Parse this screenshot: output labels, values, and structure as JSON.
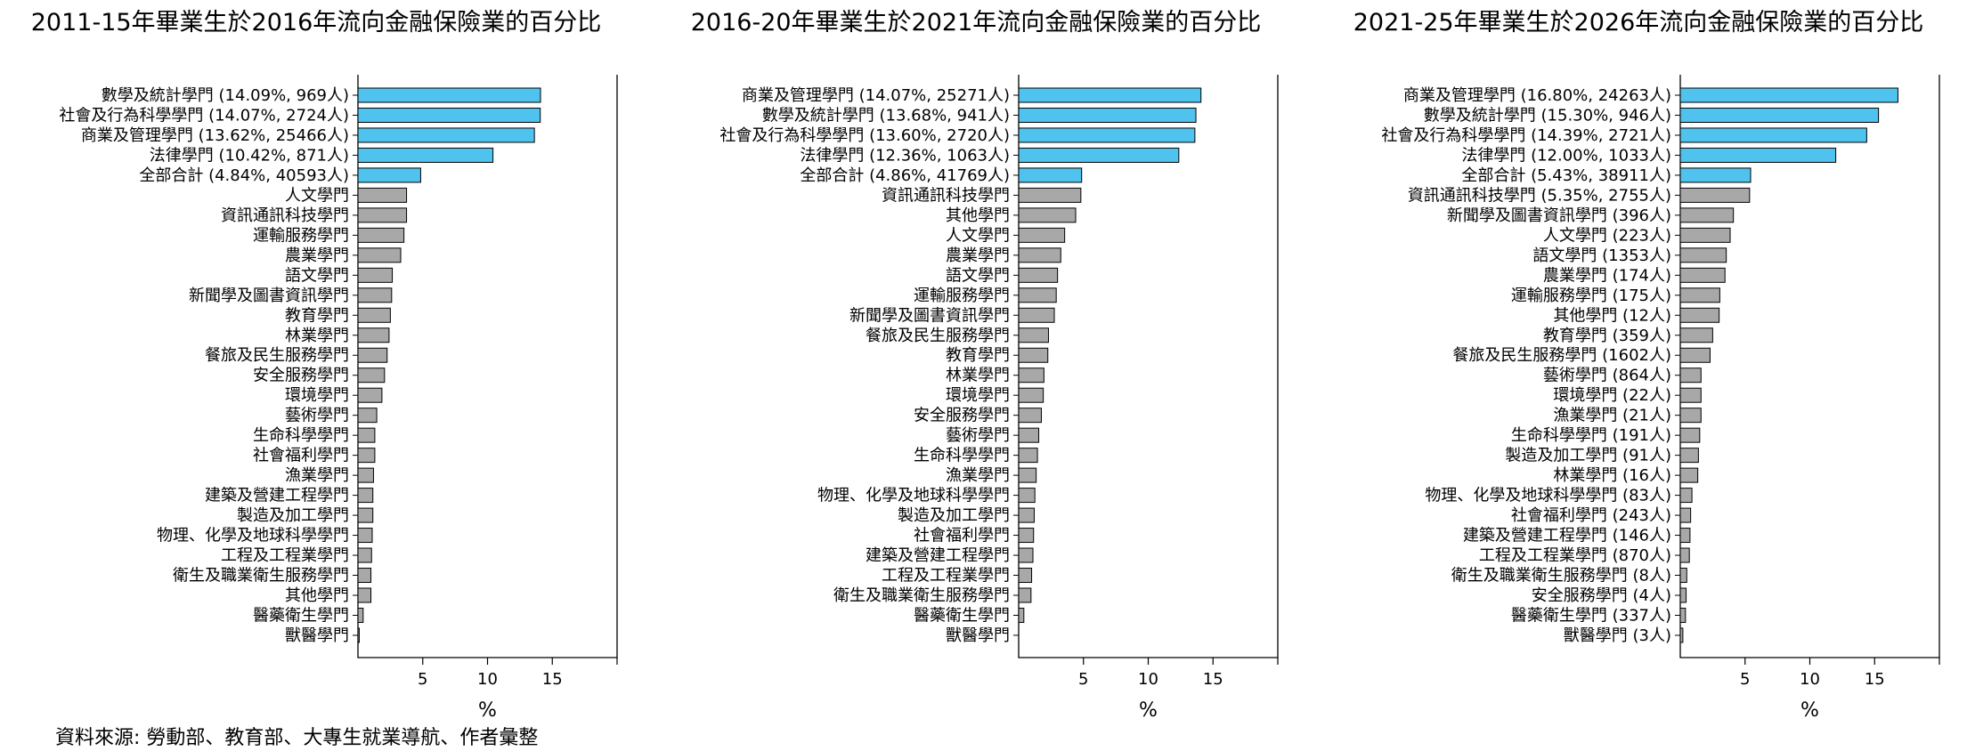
{
  "source": "資料來源: 勞動部、教育部、大專生就業導航、作者彙整",
  "colors": {
    "highlight": "#4FC3EE",
    "normal": "#A8A8A8",
    "edge": "#000000"
  },
  "chart_data": [
    {
      "type": "bar",
      "orientation": "horizontal",
      "title": "2011-15年畢業生於2016年流向金融保險業的百分比",
      "xlabel": "%",
      "xlim": [
        0,
        20
      ],
      "xticks": [
        5,
        10,
        15
      ],
      "categories": [
        "數學及統計學門 (14.09%, 969人)",
        "社會及行為科學學門 (14.07%, 2724人)",
        "商業及管理學門 (13.62%, 25466人)",
        "法律學門 (10.42%, 871人)",
        "全部合計 (4.84%, 40593人)",
        "人文學門",
        "資訊通訊科技學門",
        "運輸服務學門",
        "農業學門",
        "語文學門",
        "新聞學及圖書資訊學門",
        "教育學門",
        "林業學門",
        "餐旅及民生服務學門",
        "安全服務學門",
        "環境學門",
        "藝術學門",
        "生命科學學門",
        "社會福利學門",
        "漁業學門",
        "建築及營建工程學門",
        "製造及加工學門",
        "物理、化學及地球科學學門",
        "工程及工程業學門",
        "衛生及職業衛生服務學門",
        "其他學門",
        "醫藥衛生學門",
        "獸醫學門"
      ],
      "values": [
        14.09,
        14.07,
        13.62,
        10.42,
        4.84,
        3.75,
        3.75,
        3.55,
        3.3,
        2.65,
        2.6,
        2.5,
        2.4,
        2.25,
        2.05,
        1.85,
        1.45,
        1.3,
        1.3,
        1.2,
        1.15,
        1.15,
        1.1,
        1.05,
        1.0,
        1.0,
        0.4,
        0.1
      ],
      "highlighted": [
        true,
        true,
        true,
        true,
        true,
        false,
        false,
        false,
        false,
        false,
        false,
        false,
        false,
        false,
        false,
        false,
        false,
        false,
        false,
        false,
        false,
        false,
        false,
        false,
        false,
        false,
        false,
        false
      ]
    },
    {
      "type": "bar",
      "orientation": "horizontal",
      "title": "2016-20年畢業生於2021年流向金融保險業的百分比",
      "xlabel": "%",
      "xlim": [
        0,
        20
      ],
      "xticks": [
        5,
        10,
        15
      ],
      "categories": [
        "商業及管理學門 (14.07%, 25271人)",
        "數學及統計學門 (13.68%, 941人)",
        "社會及行為科學學門 (13.60%, 2720人)",
        "法律學門 (12.36%, 1063人)",
        "全部合計 (4.86%, 41769人)",
        "資訊通訊科技學門",
        "其他學門",
        "人文學門",
        "農業學門",
        "語文學門",
        "運輸服務學門",
        "新聞學及圖書資訊學門",
        "餐旅及民生服務學門",
        "教育學門",
        "林業學門",
        "環境學門",
        "安全服務學門",
        "藝術學門",
        "生命科學學門",
        "漁業學門",
        "物理、化學及地球科學學門",
        "製造及加工學門",
        "社會福利學門",
        "建築及營建工程學門",
        "工程及工程業學門",
        "衛生及職業衛生服務學門",
        "醫藥衛生學門",
        "獸醫學門"
      ],
      "values": [
        14.07,
        13.68,
        13.6,
        12.36,
        4.86,
        4.8,
        4.4,
        3.55,
        3.25,
        3.0,
        2.9,
        2.75,
        2.3,
        2.25,
        1.95,
        1.9,
        1.75,
        1.55,
        1.45,
        1.35,
        1.25,
        1.2,
        1.15,
        1.1,
        1.0,
        0.95,
        0.4,
        0.0
      ],
      "highlighted": [
        true,
        true,
        true,
        true,
        true,
        false,
        false,
        false,
        false,
        false,
        false,
        false,
        false,
        false,
        false,
        false,
        false,
        false,
        false,
        false,
        false,
        false,
        false,
        false,
        false,
        false,
        false,
        false
      ]
    },
    {
      "type": "bar",
      "orientation": "horizontal",
      "title": "2021-25年畢業生於2026年流向金融保險業的百分比",
      "xlabel": "%",
      "xlim": [
        0,
        20
      ],
      "xticks": [
        5,
        10,
        15
      ],
      "categories": [
        "商業及管理學門 (16.80%, 24263人)",
        "數學及統計學門 (15.30%, 946人)",
        "社會及行為科學學門 (14.39%, 2721人)",
        "法律學門 (12.00%, 1033人)",
        "全部合計 (5.43%, 38911人)",
        "資訊通訊科技學門 (5.35%, 2755人)",
        "新聞學及圖書資訊學門 (396人)",
        "人文學門 (223人)",
        "語文學門 (1353人)",
        "農業學門 (174人)",
        "運輸服務學門 (175人)",
        "其他學門 (12人)",
        "教育學門 (359人)",
        "餐旅及民生服務學門 (1602人)",
        "藝術學門 (864人)",
        "環境學門 (22人)",
        "漁業學門 (21人)",
        "生命科學學門 (191人)",
        "製造及加工學門 (91人)",
        "林業學門 (16人)",
        "物理、化學及地球科學學門 (83人)",
        "社會福利學門 (243人)",
        "建築及營建工程學門 (146人)",
        "工程及工程業學門 (870人)",
        "衛生及職業衛生服務學門 (8人)",
        "安全服務學門 (4人)",
        "醫藥衛生學門 (337人)",
        "獸醫學門 (3人)"
      ],
      "values": [
        16.8,
        15.3,
        14.39,
        12.0,
        5.43,
        5.35,
        4.1,
        3.85,
        3.55,
        3.45,
        3.05,
        3.0,
        2.5,
        2.3,
        1.6,
        1.6,
        1.6,
        1.5,
        1.4,
        1.35,
        0.9,
        0.8,
        0.75,
        0.7,
        0.5,
        0.45,
        0.4,
        0.2
      ],
      "highlighted": [
        true,
        true,
        true,
        true,
        true,
        false,
        false,
        false,
        false,
        false,
        false,
        false,
        false,
        false,
        false,
        false,
        false,
        false,
        false,
        false,
        false,
        false,
        false,
        false,
        false,
        false,
        false,
        false
      ]
    }
  ]
}
